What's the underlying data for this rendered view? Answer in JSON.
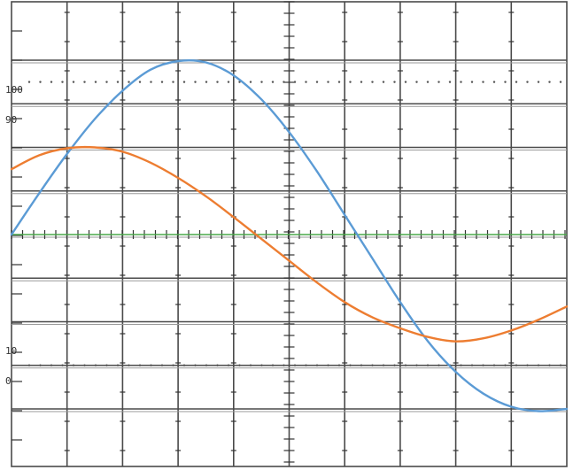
{
  "chart_data": {
    "type": "line",
    "title": "",
    "xlabel": "",
    "ylabel": "",
    "grid": true,
    "xlim": [
      0,
      10
    ],
    "ylim": [
      0,
      8
    ],
    "tick_labels": [
      "100",
      "90",
      "10",
      "0"
    ],
    "series": [
      {
        "color": "#5b9bd5",
        "x": [
          0,
          0.5,
          1,
          1.5,
          2,
          2.5,
          3,
          3.5,
          4,
          4.5,
          5,
          5.5,
          6,
          6.5,
          7,
          7.5,
          8,
          8.5,
          9,
          9.5,
          10
        ],
        "values": [
          4.0,
          4.95,
          5.85,
          6.65,
          7.3,
          7.78,
          7.98,
          7.95,
          7.65,
          7.1,
          6.35,
          5.45,
          4.45,
          3.45,
          2.45,
          1.55,
          0.85,
          0.35,
          0.05,
          -0.05,
          0.0
        ]
      },
      {
        "color": "#ed7d31",
        "x": [
          0,
          0.5,
          1,
          1.5,
          2,
          2.5,
          3,
          3.5,
          4,
          4.5,
          5,
          5.5,
          6,
          6.5,
          7,
          7.5,
          8,
          8.5,
          9,
          9.5,
          10
        ],
        "values": [
          5.5,
          5.82,
          5.98,
          6.0,
          5.9,
          5.65,
          5.3,
          4.88,
          4.4,
          3.9,
          3.4,
          2.9,
          2.45,
          2.1,
          1.85,
          1.65,
          1.55,
          1.62,
          1.8,
          2.05,
          2.35
        ]
      }
    ],
    "reference_line": {
      "y": 4,
      "color": "#4aa84a"
    }
  }
}
